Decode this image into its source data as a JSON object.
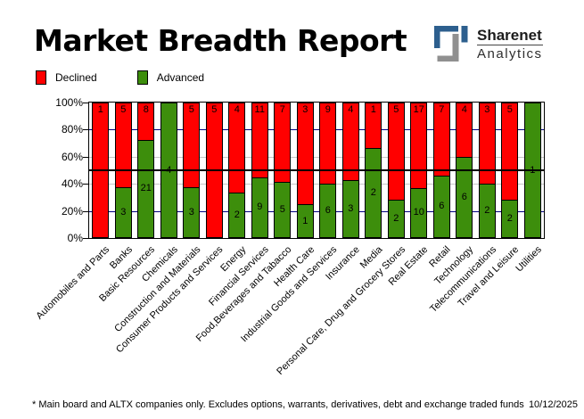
{
  "title": "Market Breadth Report",
  "logo": {
    "name": "Sharenet",
    "sub": "Analytics",
    "blue": "#2d5f8e",
    "gray": "#909090"
  },
  "legend": {
    "declined_label": "Declined",
    "advanced_label": "Advanced"
  },
  "footer": {
    "note": "* Main board and ALTX companies only. Excludes options, warrants, derivatives, debt and exchange traded funds",
    "date": "10/12/2025"
  },
  "colors": {
    "declined": "#ff0000",
    "advanced": "#3d8e0c",
    "grid_navy": "#000080",
    "grid_silver": "#c6c6c6",
    "midline": "#000000"
  },
  "chart_data": {
    "type": "bar",
    "stacked": true,
    "stack_mode": "percent",
    "title": "Market Breadth Report",
    "xlabel": "",
    "ylabel": "",
    "ylim": [
      0,
      100
    ],
    "y_ticks": [
      "100%",
      "80%",
      "60%",
      "40%",
      "20%",
      "0%"
    ],
    "gridlines": {
      "navy_at": [
        20,
        80
      ],
      "silver_at": [
        40,
        60
      ],
      "black_at": 50
    },
    "legend_position": "top-left",
    "categories": [
      "Automobiles and Parts",
      "Banks",
      "Basic Resources",
      "Chemicals",
      "Construction and Materials",
      "Consumer Products and Services",
      "Energy",
      "Financial Services",
      "Food,Beverages and Tabacco",
      "Health Care",
      "Industrial Goods and Services",
      "Insurance",
      "Media",
      "Personal Care, Drug and Grocery Stores",
      "Real Estate",
      "Retail",
      "Technology",
      "Telecommunications",
      "Travel and Leisure",
      "Utilities"
    ],
    "series": [
      {
        "name": "Declined",
        "color": "#ff0000",
        "values": [
          1,
          5,
          8,
          0,
          5,
          5,
          4,
          11,
          7,
          3,
          9,
          4,
          1,
          5,
          17,
          7,
          4,
          3,
          5,
          0
        ]
      },
      {
        "name": "Advanced",
        "color": "#3d8e0c",
        "values": [
          0,
          3,
          21,
          4,
          3,
          0,
          2,
          9,
          5,
          1,
          6,
          3,
          2,
          2,
          10,
          6,
          6,
          2,
          2,
          1
        ]
      }
    ]
  }
}
